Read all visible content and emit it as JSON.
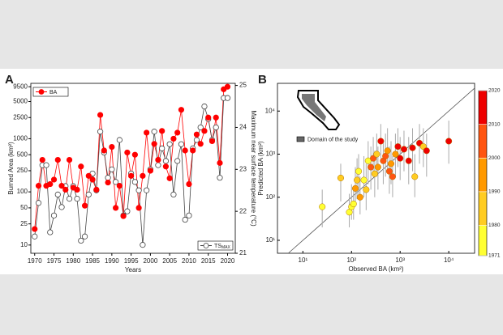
{
  "chart_data": [
    {
      "type": "line",
      "label": "A",
      "xlabel": "Years",
      "ylabel": "Burned Area (km²)",
      "y2label": "Maximum near surface temperature (°C)",
      "x": [
        1970,
        1971,
        1972,
        1973,
        1974,
        1975,
        1976,
        1977,
        1978,
        1979,
        1980,
        1981,
        1982,
        1983,
        1984,
        1985,
        1986,
        1987,
        1988,
        1989,
        1990,
        1991,
        1992,
        1993,
        1994,
        1995,
        1996,
        1997,
        1998,
        1999,
        2000,
        2001,
        2002,
        2003,
        2004,
        2005,
        2006,
        2007,
        2008,
        2009,
        2010,
        2011,
        2012,
        2013,
        2014,
        2015,
        2016,
        2017,
        2018,
        2019,
        2020
      ],
      "xlim": [
        1969,
        2022
      ],
      "xticks": [
        1970,
        1975,
        1980,
        1985,
        1990,
        1995,
        2000,
        2005,
        2010,
        2015,
        2020
      ],
      "ylim": [
        7,
        11000
      ],
      "log": true,
      "yticks": [
        10,
        25,
        50,
        100,
        250,
        500,
        1000,
        2500,
        5000,
        9500
      ],
      "y2lim": [
        21,
        25.05
      ],
      "y2ticks": [
        21,
        22,
        23,
        24,
        25
      ],
      "series": [
        {
          "name": "BA",
          "color": "#ff0000",
          "marker": "filled",
          "legend": "upper left",
          "values": [
            20,
            130,
            400,
            130,
            140,
            170,
            400,
            130,
            110,
            400,
            120,
            110,
            300,
            55,
            200,
            170,
            110,
            2800,
            600,
            150,
            700,
            50,
            130,
            35,
            550,
            200,
            500,
            50,
            200,
            1300,
            250,
            800,
            400,
            1400,
            300,
            180,
            1000,
            1300,
            3500,
            600,
            140,
            600,
            1200,
            800,
            1400,
            2500,
            900,
            2500,
            350,
            8500,
            9500
          ]
        },
        {
          "name": "TS",
          "name_sub": "MAX",
          "color": "#444444",
          "marker": "open",
          "axis": "y2",
          "legend": "lower right",
          "values": [
            21.4,
            22.2,
            23.1,
            23.1,
            21.5,
            21.9,
            22.4,
            22.1,
            22.6,
            22.3,
            22.6,
            22.3,
            21.3,
            21.4,
            22.4,
            22.9,
            22.5,
            23.9,
            23.4,
            22.8,
            23.0,
            22.7,
            23.7,
            21.9,
            22.0,
            22.9,
            22.7,
            22.5,
            21.2,
            22.5,
            23.0,
            23.9,
            23.1,
            23.5,
            23.2,
            23.6,
            22.4,
            23.2,
            23.6,
            21.8,
            21.9,
            23.5,
            23.7,
            24.0,
            24.5,
            24.2,
            23.7,
            24.0,
            22.8,
            24.7,
            24.7
          ]
        }
      ]
    },
    {
      "type": "scatter",
      "label": "B",
      "xlabel": "Observed BA (km²)",
      "ylabel": "Predicted BA (km²)",
      "inset_legend": "Domain of the study",
      "log": true,
      "xlim": [
        3,
        34000
      ],
      "ylim": [
        5,
        44000
      ],
      "xticks": [
        {
          "value": 10,
          "label": "10¹"
        },
        {
          "value": 100,
          "label": "10²"
        },
        {
          "value": 1000,
          "label": "10³"
        },
        {
          "value": 10000,
          "label": "10⁴"
        }
      ],
      "yticks": [
        {
          "value": 10,
          "label": "10¹"
        },
        {
          "value": 100,
          "label": "10²"
        },
        {
          "value": 1000,
          "label": "10³"
        },
        {
          "value": 10000,
          "label": "10⁴"
        }
      ],
      "x": [
        25,
        60,
        90,
        100,
        110,
        120,
        130,
        140,
        150,
        180,
        200,
        220,
        250,
        280,
        300,
        330,
        350,
        400,
        450,
        500,
        550,
        600,
        650,
        700,
        800,
        900,
        1000,
        1200,
        1500,
        1800,
        2000,
        2500,
        3000,
        3500,
        10000
      ],
      "y": [
        60,
        280,
        45,
        60,
        70,
        160,
        250,
        400,
        100,
        250,
        150,
        700,
        500,
        800,
        350,
        1000,
        500,
        2000,
        700,
        900,
        1200,
        400,
        600,
        300,
        1000,
        1500,
        800,
        1300,
        700,
        1400,
        300,
        1800,
        1500,
        1200,
        2000
      ],
      "y_low": [
        20,
        80,
        20,
        30,
        30,
        60,
        90,
        100,
        40,
        100,
        50,
        200,
        150,
        300,
        100,
        300,
        150,
        800,
        200,
        300,
        400,
        120,
        200,
        100,
        300,
        500,
        250,
        400,
        200,
        400,
        100,
        600,
        500,
        300,
        600
      ],
      "y_high": [
        150,
        600,
        120,
        200,
        150,
        500,
        800,
        1000,
        300,
        900,
        600,
        2000,
        1500,
        2500,
        1200,
        3000,
        1500,
        5000,
        2000,
        3000,
        4000,
        1500,
        2000,
        900,
        3000,
        4000,
        2500,
        3500,
        2500,
        4000,
        1000,
        5000,
        4000,
        3000,
        6000
      ],
      "year": [
        1975,
        1985,
        1972,
        1974,
        1971,
        1993,
        1980,
        1978,
        1990,
        1976,
        1988,
        1973,
        2003,
        2007,
        1985,
        1982,
        1999,
        2012,
        2001,
        2005,
        1994,
        2009,
        1997,
        2004,
        1992,
        2014,
        2017,
        2015,
        2011,
        2010,
        1986,
        2013,
        1983,
        2019,
        2020
      ],
      "colorbar": {
        "lim": [
          1971,
          2020
        ],
        "ticks": [
          1971,
          1980,
          1990,
          2000,
          2010,
          2020
        ],
        "colors": [
          "#ffff33",
          "#ffcc22",
          "#ff9900",
          "#ff5511",
          "#ee0000"
        ]
      }
    }
  ]
}
